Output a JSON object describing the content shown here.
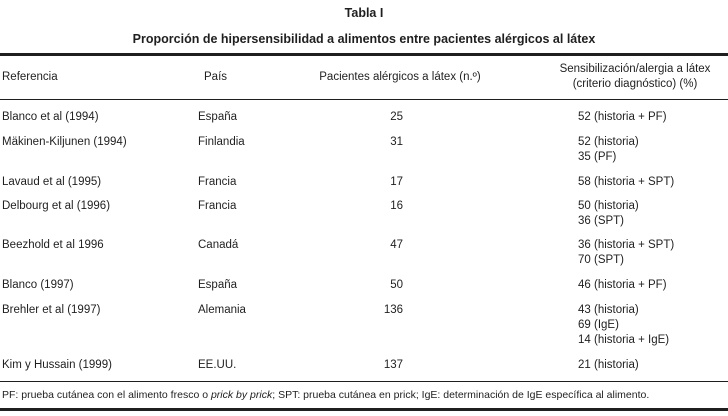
{
  "table_title": "Tabla I",
  "table_subtitle": "Proporción de hipersensibilidad a alimentos entre pacientes alérgicos al látex",
  "headers": {
    "referencia": "Referencia",
    "pais": "País",
    "pacientes": "Pacientes alérgicos a látex (n.º)",
    "sens_line1": "Sensibilización/alergia a látex",
    "sens_line2": "(criterio diagnóstico) (%)"
  },
  "rows": [
    {
      "referencia": "Blanco et al (1994)",
      "pais": "España",
      "pacientes": "25",
      "sens": [
        "52 (historia + PF)"
      ]
    },
    {
      "referencia": "Mäkinen-Kiljunen (1994)",
      "pais": "Finlandia",
      "pacientes": "31",
      "sens": [
        "52 (historia)",
        "35 (PF)"
      ]
    },
    {
      "referencia": "Lavaud et al (1995)",
      "pais": "Francia",
      "pacientes": "17",
      "sens": [
        "58 (historia + SPT)"
      ]
    },
    {
      "referencia": "Delbourg et al (1996)",
      "pais": "Francia",
      "pacientes": "16",
      "sens": [
        "50 (historia)",
        "36 (SPT)"
      ]
    },
    {
      "referencia": "Beezhold et al 1996",
      "pais": "Canadá",
      "pacientes": "47",
      "sens": [
        "36 (historia + SPT)",
        "70 (SPT)"
      ]
    },
    {
      "referencia": "Blanco (1997)",
      "pais": "España",
      "pacientes": "50",
      "sens": [
        "46 (historia + PF)"
      ]
    },
    {
      "referencia": "Brehler et al (1997)",
      "pais": "Alemania",
      "pacientes": "136",
      "sens": [
        "43 (historia)",
        "69 (IgE)",
        "14 (historia + IgE)"
      ]
    },
    {
      "referencia": "Kim y Hussain (1999)",
      "pais": "EE.UU.",
      "pacientes": "137",
      "sens": [
        "21 (historia)"
      ]
    }
  ],
  "footnote": {
    "part1": "PF: prueba cutánea con el alimento fresco o ",
    "italic": "prick by prick",
    "part2": "; SPT: prueba cutánea en prick; IgE: determinación de IgE específica al alimento."
  }
}
